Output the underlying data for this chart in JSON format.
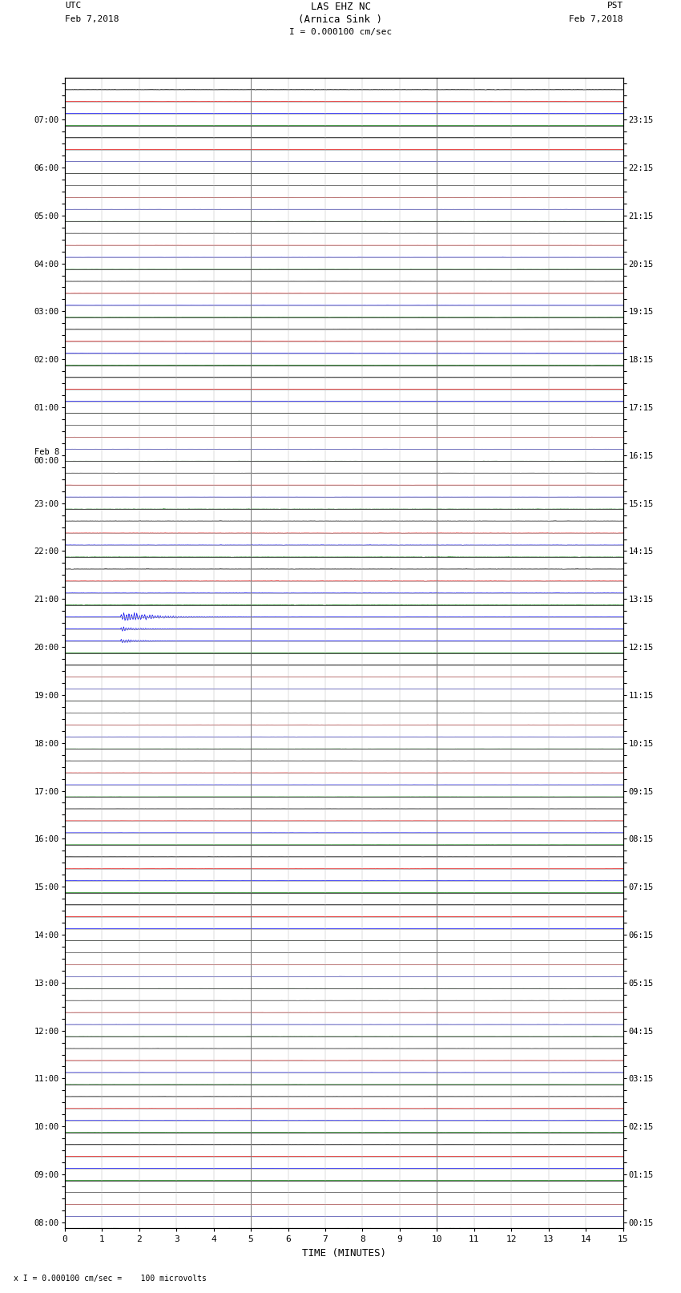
{
  "title_line1": "LAS EHZ NC",
  "title_line2": "(Arnica Sink )",
  "scale_label": "I = 0.000100 cm/sec",
  "left_header_line1": "UTC",
  "left_header_line2": "Feb 7,2018",
  "right_header_line1": "PST",
  "right_header_line2": "Feb 7,2018",
  "footer_note": "x I = 0.000100 cm/sec =    100 microvolts",
  "xlabel": "TIME (MINUTES)",
  "num_rows": 96,
  "minutes_per_row": 15,
  "hours_per_screen": 24,
  "left_times_utc": [
    "08:00",
    "",
    "",
    "",
    "09:00",
    "",
    "",
    "",
    "10:00",
    "",
    "",
    "",
    "11:00",
    "",
    "",
    "",
    "12:00",
    "",
    "",
    "",
    "13:00",
    "",
    "",
    "",
    "14:00",
    "",
    "",
    "",
    "15:00",
    "",
    "",
    "",
    "16:00",
    "",
    "",
    "",
    "17:00",
    "",
    "",
    "",
    "18:00",
    "",
    "",
    "",
    "19:00",
    "",
    "",
    "",
    "20:00",
    "",
    "",
    "",
    "21:00",
    "",
    "",
    "",
    "22:00",
    "",
    "",
    "",
    "23:00",
    "",
    "",
    "",
    "Feb 8\n00:00",
    "",
    "",
    "",
    "01:00",
    "",
    "",
    "",
    "02:00",
    "",
    "",
    "",
    "03:00",
    "",
    "",
    "",
    "04:00",
    "",
    "",
    "",
    "05:00",
    "",
    "",
    "",
    "06:00",
    "",
    "",
    "",
    "07:00",
    "",
    "",
    ""
  ],
  "right_times_pst": [
    "00:15",
    "",
    "",
    "",
    "01:15",
    "",
    "",
    "",
    "02:15",
    "",
    "",
    "",
    "03:15",
    "",
    "",
    "",
    "04:15",
    "",
    "",
    "",
    "05:15",
    "",
    "",
    "",
    "06:15",
    "",
    "",
    "",
    "07:15",
    "",
    "",
    "",
    "08:15",
    "",
    "",
    "",
    "09:15",
    "",
    "",
    "",
    "10:15",
    "",
    "",
    "",
    "11:15",
    "",
    "",
    "",
    "12:15",
    "",
    "",
    "",
    "13:15",
    "",
    "",
    "",
    "14:15",
    "",
    "",
    "",
    "15:15",
    "",
    "",
    "",
    "16:15",
    "",
    "",
    "",
    "17:15",
    "",
    "",
    "",
    "18:15",
    "",
    "",
    "",
    "19:15",
    "",
    "",
    "",
    "20:15",
    "",
    "",
    "",
    "21:15",
    "",
    "",
    "",
    "22:15",
    "",
    "",
    "",
    "23:15",
    "",
    "",
    ""
  ],
  "bg_color": "#ffffff",
  "noise_amplitude": 0.006,
  "eq_row": 44,
  "eq_minute": 1.5,
  "eq_amplitude": 0.38,
  "colors": {
    "black": "#000000",
    "blue": "#0000ee",
    "red": "#dd0000",
    "green": "#007700",
    "darkgray": "#333333"
  }
}
